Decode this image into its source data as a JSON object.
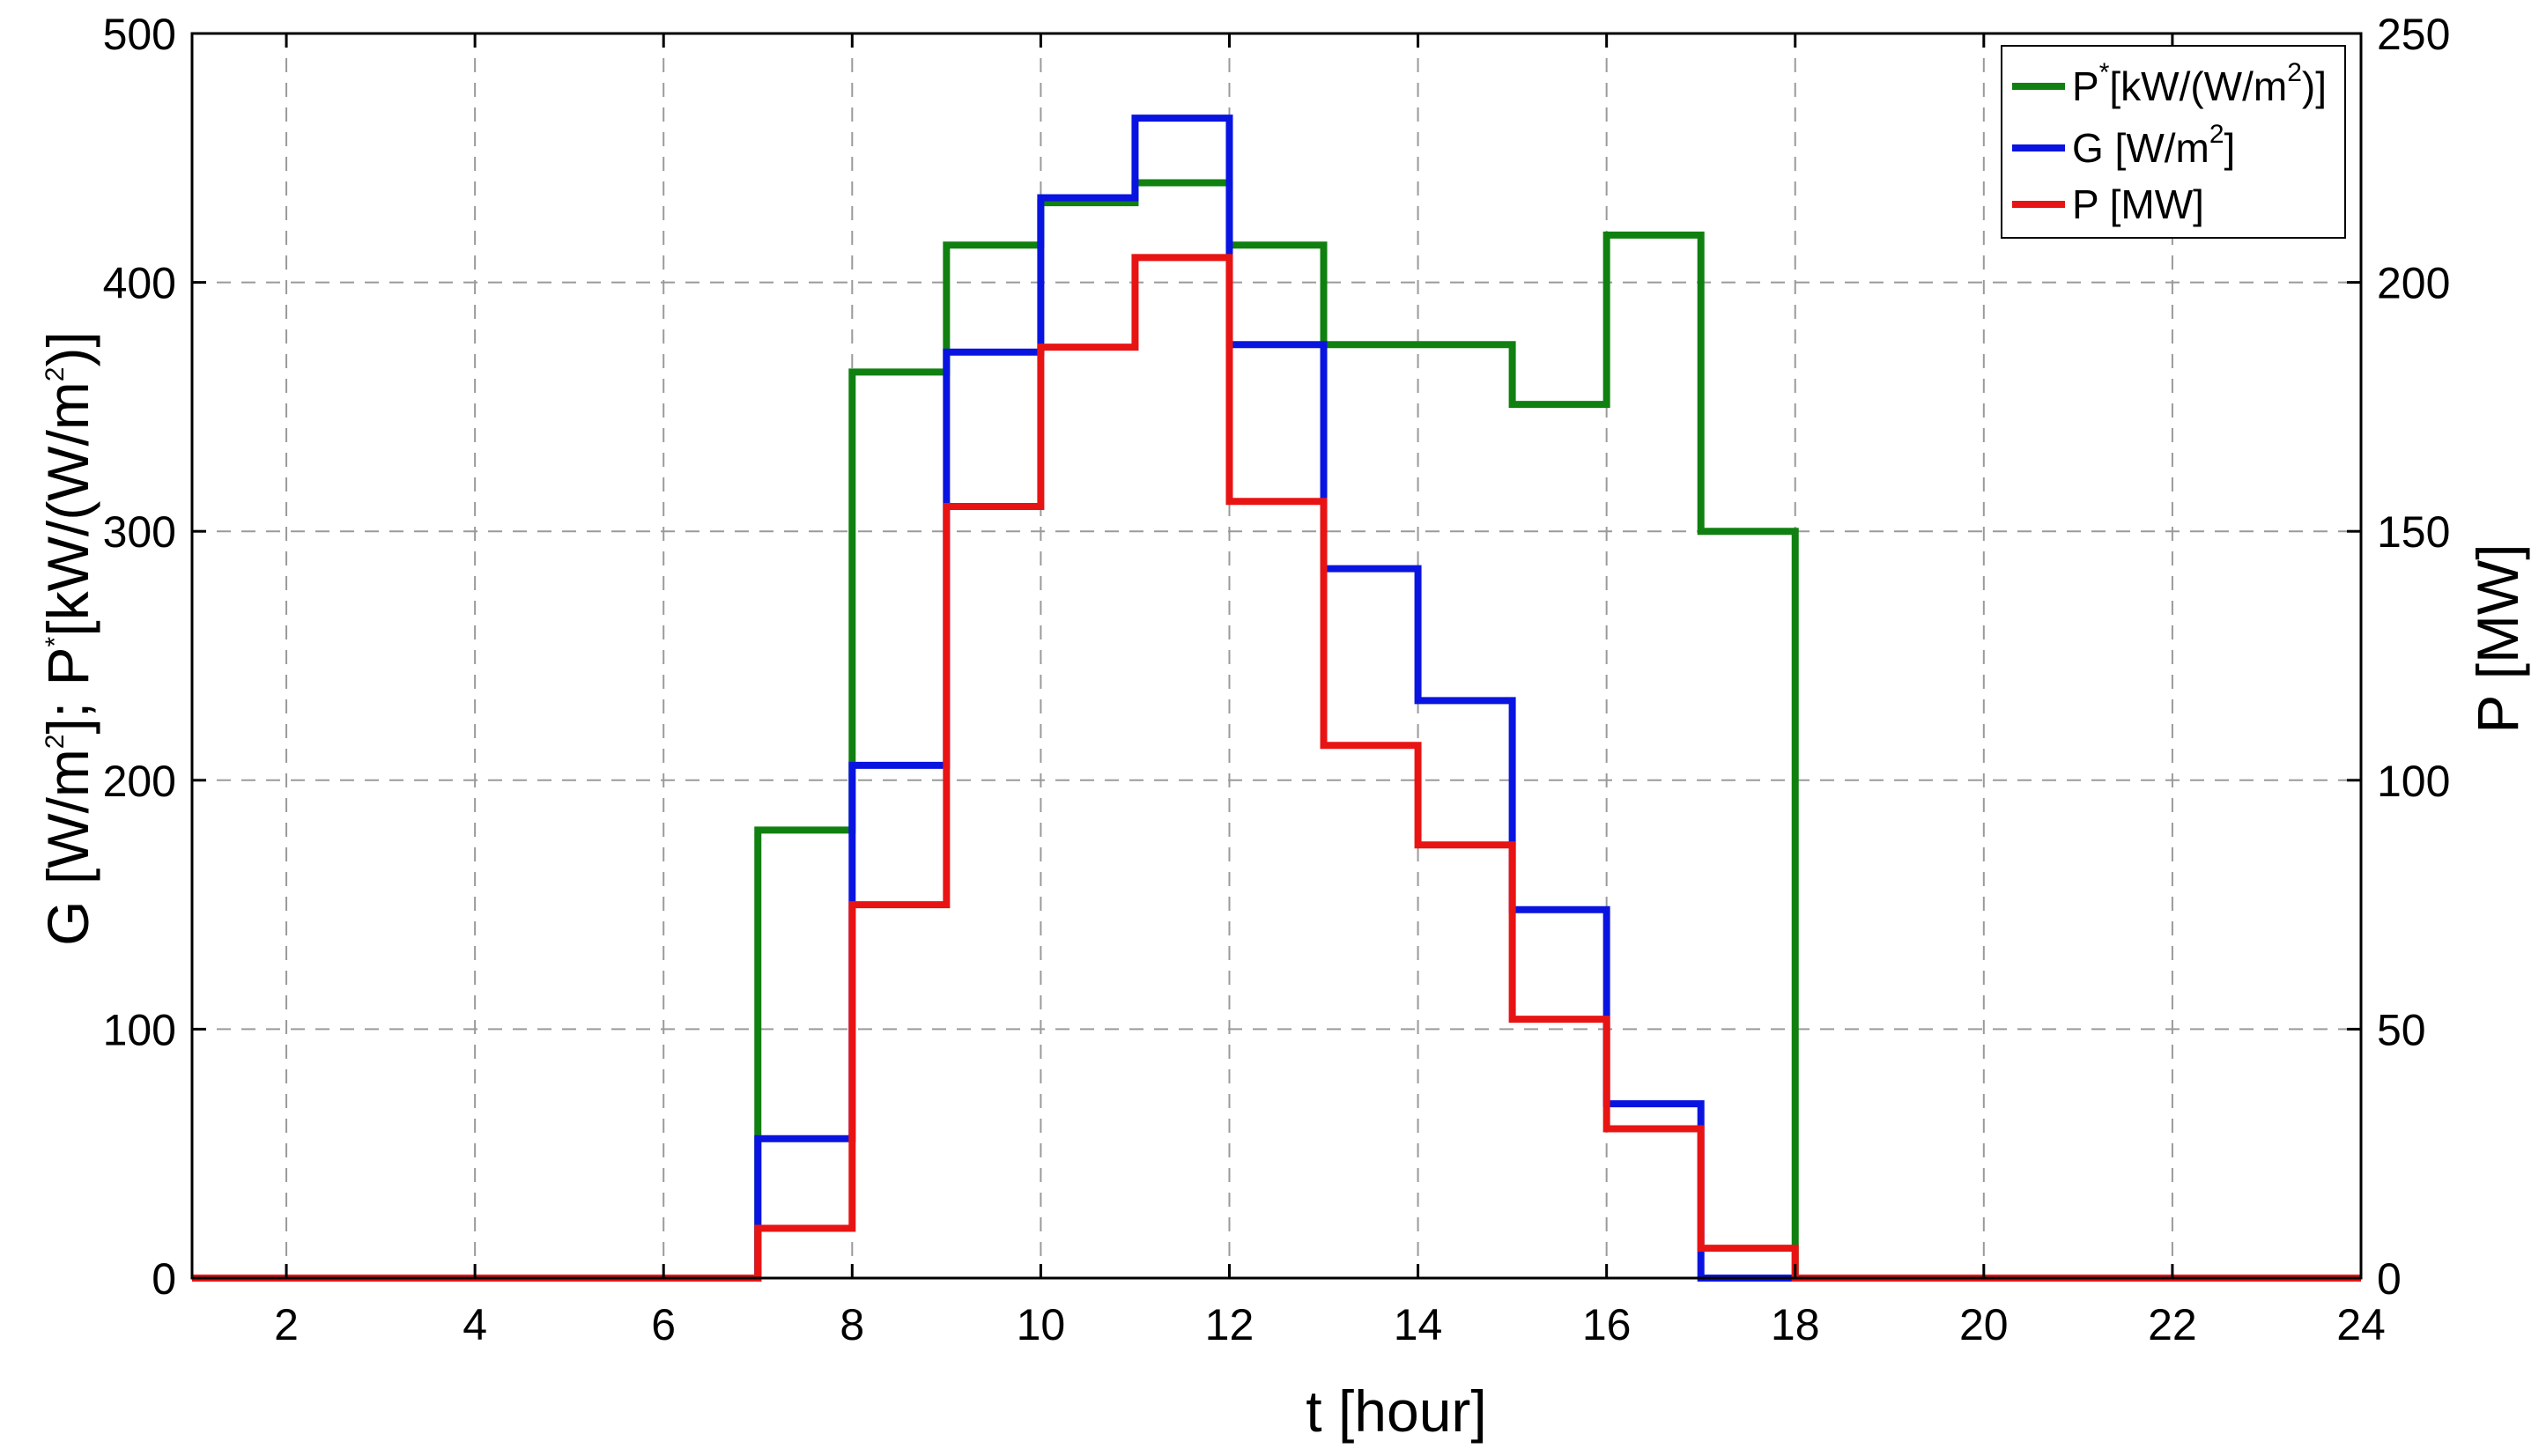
{
  "chart_data": {
    "type": "line",
    "step": true,
    "x_range": [
      1,
      24
    ],
    "x_ticks": [
      2,
      4,
      6,
      8,
      10,
      12,
      14,
      16,
      18,
      20,
      22,
      24
    ],
    "left_ylim": [
      0,
      500
    ],
    "left_yticks": [
      0,
      100,
      200,
      300,
      400,
      500
    ],
    "right_ylim": [
      0,
      250
    ],
    "right_yticks": [
      0,
      50,
      100,
      150,
      200,
      250
    ],
    "xlabel": "t [hour]",
    "ylabel_left": {
      "part1": "G [W/m",
      "sup1": "2",
      "part2": "];  P",
      "sup2": "*",
      "part3": "[kW/(W/m",
      "sup3": "2",
      "part4": ")]"
    },
    "ylabel_right": "P [MW]",
    "grid": true,
    "legend_position": "top-right",
    "x": [
      1,
      2,
      3,
      4,
      5,
      6,
      7,
      8,
      9,
      10,
      11,
      12,
      13,
      14,
      15,
      16,
      17,
      18,
      19,
      20,
      21,
      22,
      23,
      24
    ],
    "series": [
      {
        "key": "pstar",
        "axis": "left",
        "color": "#108010",
        "legend": {
          "p1": "P",
          "sup1": "*",
          "p2": "[kW/(W/m",
          "sup2": "2",
          "p3": ")]"
        },
        "values": [
          0,
          0,
          0,
          0,
          0,
          0,
          180,
          364,
          415,
          432,
          440,
          415,
          375,
          375,
          351,
          419,
          300,
          0,
          0,
          0,
          0,
          0,
          0,
          0
        ]
      },
      {
        "key": "g",
        "axis": "left",
        "color": "#0a14e0",
        "legend": {
          "p1": "G [W/m",
          "sup1": "2",
          "p2": "]"
        },
        "values": [
          0,
          0,
          0,
          0,
          0,
          0,
          56,
          206,
          372,
          434,
          466,
          375,
          285,
          232,
          148,
          70,
          0,
          0,
          0,
          0,
          0,
          0,
          0,
          0
        ]
      },
      {
        "key": "p",
        "axis": "right",
        "color": "#e81414",
        "legend": {
          "p1": "P [MW]"
        },
        "values": [
          0,
          0,
          0,
          0,
          0,
          0,
          10,
          75,
          155,
          187,
          205,
          156,
          107,
          87,
          52,
          30,
          6,
          0,
          0,
          0,
          0,
          0,
          0,
          0
        ]
      }
    ]
  }
}
